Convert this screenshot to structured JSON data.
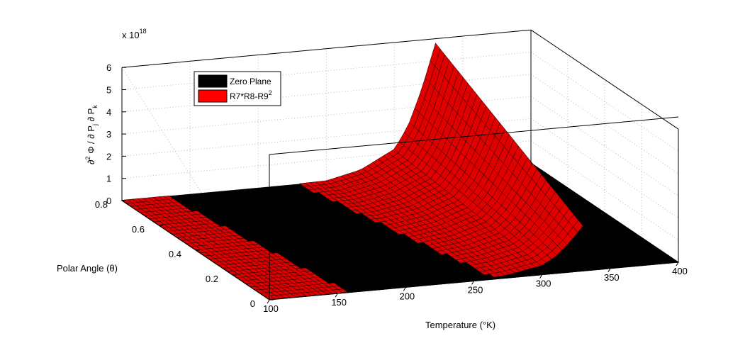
{
  "chart_data": {
    "type": "surface",
    "xlabel": "Temperature (°K)",
    "ylabel": "Polar Angle (θ)",
    "zlabel_parts": {
      "a": "∂",
      "a_sup": "2",
      "b": " Φ / ∂ P",
      "b_sub": "j",
      "c": " ∂ P",
      "c_sub": "k"
    },
    "x_ticks": [
      100,
      150,
      200,
      250,
      300,
      350,
      400
    ],
    "y_ticks": [
      0,
      0.2,
      0.4,
      0.6,
      0.8
    ],
    "z_ticks": [
      0,
      1,
      2,
      3,
      4,
      5,
      6
    ],
    "z_multiplier": "x 10",
    "z_multiplier_exp": "18",
    "xlim": [
      100,
      400
    ],
    "ylim": [
      0,
      0.8
    ],
    "zlim": [
      0,
      6
    ],
    "grid": true,
    "legend": {
      "placement": "top-left",
      "entries": [
        {
          "label": "Zero Plane",
          "color": "#000000"
        },
        {
          "label_base": "R7*R8-R9",
          "label_sup": "2",
          "color": "#ff0000"
        }
      ]
    },
    "series": [
      {
        "name": "Zero Plane",
        "color": "#000000",
        "z_value": 0
      },
      {
        "name": "R7*R8-R9²",
        "color": "#ff0000",
        "profile_along_temperature": {
          "x": [
            100,
            150,
            200,
            250,
            275,
            300,
            310,
            320,
            330
          ],
          "z_max": [
            0,
            0,
            0,
            0.05,
            0.4,
            1.2,
            2.2,
            3.8,
            5.8
          ]
        }
      }
    ]
  }
}
